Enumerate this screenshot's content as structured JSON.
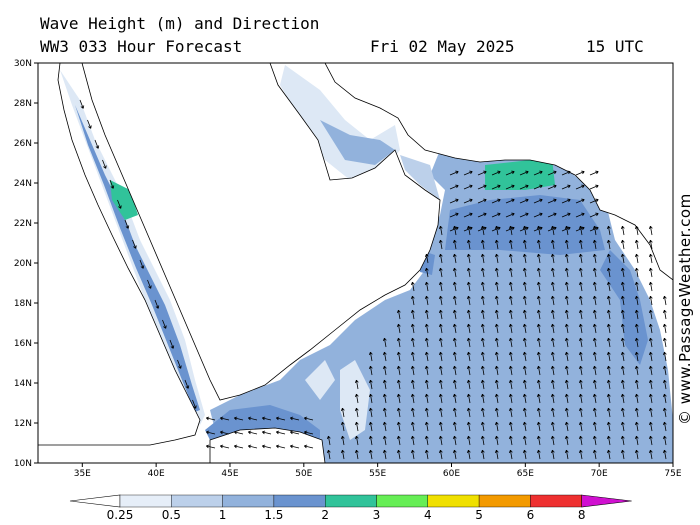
{
  "header": {
    "line1": "Wave Height (m) and Direction",
    "line2": "WW3 033 Hour Forecast",
    "date": "Fri 02 May 2025",
    "time": "15 UTC"
  },
  "credit": "© www.PassageWeather.com",
  "map": {
    "lon_range": [
      32,
      75
    ],
    "lat_range": [
      10,
      30
    ],
    "lat_ticks": [
      "30N",
      "28N",
      "26N",
      "24N",
      "22N",
      "20N",
      "18N",
      "16N",
      "14N",
      "12N",
      "10N"
    ],
    "lon_ticks": [
      "35E",
      "40E",
      "45E",
      "50E",
      "55E",
      "60E",
      "65E",
      "70E",
      "75E"
    ]
  },
  "colorbar": {
    "labels": [
      "0.25",
      "0.5",
      "1",
      "1.5",
      "2",
      "3",
      "4",
      "5",
      "6",
      "8"
    ],
    "colors": [
      "#e6eef8",
      "#bcd0ea",
      "#92b2dc",
      "#6a93cf",
      "#31c39a",
      "#66ee55",
      "#f0e000",
      "#f39a00",
      "#ee3030",
      "#b00000",
      "#d010d0"
    ]
  }
}
